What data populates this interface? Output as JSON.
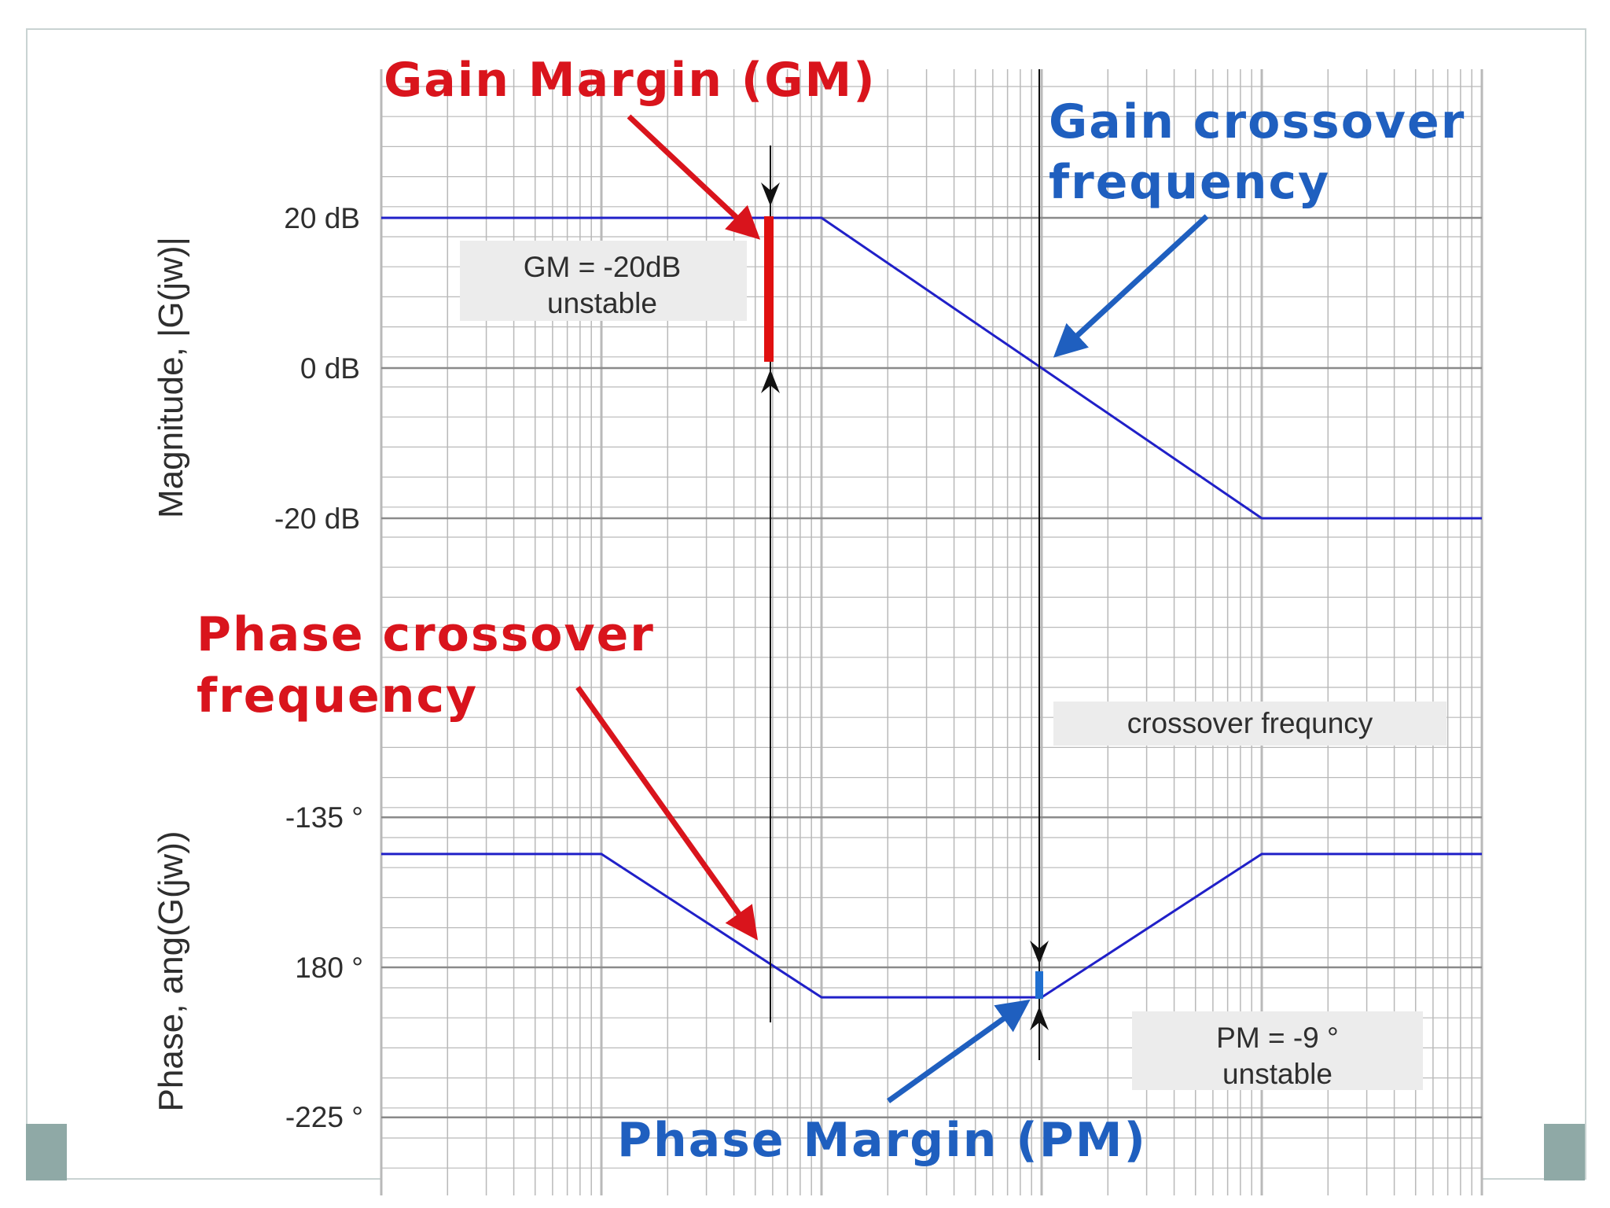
{
  "colors": {
    "callout_red": "#d9141c",
    "callout_blue": "#1f5fbf",
    "curve": "#2020c8",
    "grid": "#b9b9b9"
  },
  "callouts": {
    "gain_margin": "Gain Margin (GM)",
    "gain_crossover_line1": "Gain crossover",
    "gain_crossover_line2": "frequency",
    "phase_crossover_line1": "Phase crossover",
    "phase_crossover_line2": "frequency",
    "phase_margin": "Phase Margin (PM)"
  },
  "boxes": {
    "gm_line1": "GM = -20dB",
    "gm_line2": "unstable",
    "crossover": "crossover frequncy",
    "pm_line1": "PM = -9 °",
    "pm_line2": "unstable"
  },
  "chart_data": [
    {
      "type": "line",
      "panel": "magnitude",
      "ylabel": "Magnitude, |G(jw)|",
      "yticks": [
        {
          "value": 20,
          "label": "20 dB"
        },
        {
          "value": 0,
          "label": "0 dB"
        },
        {
          "value": -20,
          "label": "-20 dB"
        }
      ],
      "x_scale": "log",
      "xlim_decades": [
        0,
        5
      ],
      "grid": true,
      "series": [
        {
          "x": [
            0,
            2,
            4,
            5
          ],
          "y": [
            20,
            20,
            -20,
            -20
          ]
        }
      ],
      "gain_margin_db": -20,
      "gain_crossover_x": 3
    },
    {
      "type": "line",
      "panel": "phase",
      "ylabel": "Phase, ang(G(jw))",
      "yticks": [
        {
          "value": -135,
          "label": "-135 °"
        },
        {
          "value": -180,
          "label": "180 °"
        },
        {
          "value": -225,
          "label": "-225 °"
        }
      ],
      "x_scale": "log",
      "xlim_decades": [
        0,
        5
      ],
      "grid": true,
      "series": [
        {
          "x": [
            0,
            1,
            2,
            3,
            4,
            5
          ],
          "y": [
            -146,
            -146,
            -189,
            -189,
            -146,
            -146
          ]
        }
      ],
      "phase_crossover_x": 1.77,
      "phase_margin_deg": -9
    }
  ]
}
